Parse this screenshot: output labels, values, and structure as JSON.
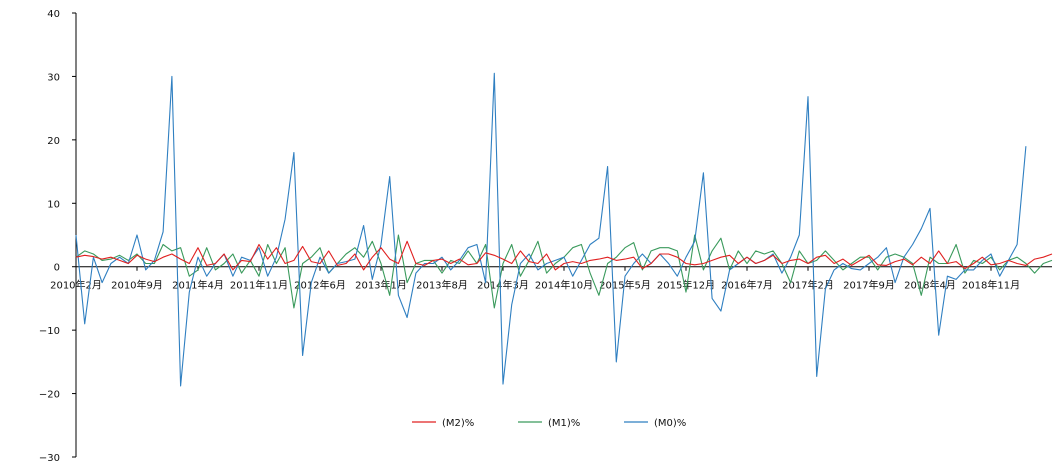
{
  "chart_data": {
    "type": "line",
    "title": "",
    "xlabel": "",
    "ylabel": "",
    "ylim": [
      -30,
      40
    ],
    "y_ticks": [
      -30,
      -20,
      -10,
      0,
      10,
      20,
      30,
      40
    ],
    "x_tick_labels": [
      {
        "index": 0,
        "label": "2010年2月"
      },
      {
        "index": 7,
        "label": "2010年9月"
      },
      {
        "index": 14,
        "label": "2011年4月"
      },
      {
        "index": 21,
        "label": "2011年11月"
      },
      {
        "index": 28,
        "label": "2012年6月"
      },
      {
        "index": 35,
        "label": "2013年1月"
      },
      {
        "index": 42,
        "label": "2013年8月"
      },
      {
        "index": 49,
        "label": "2014年3月"
      },
      {
        "index": 56,
        "label": "2014年10月"
      },
      {
        "index": 63,
        "label": "2015年5月"
      },
      {
        "index": 70,
        "label": "2015年12月"
      },
      {
        "index": 77,
        "label": "2016年7月"
      },
      {
        "index": 84,
        "label": "2017年2月"
      },
      {
        "index": 91,
        "label": "2017年9月"
      },
      {
        "index": 98,
        "label": "2018年4月"
      },
      {
        "index": 105,
        "label": "2018年11月"
      }
    ],
    "legend_position": "bottom-center",
    "grid": false,
    "series": [
      {
        "name": "(M2)%",
        "color": "#e02020",
        "values": [
          1.5,
          1.8,
          1.6,
          1.2,
          1.5,
          1.0,
          0.5,
          1.8,
          1.2,
          0.8,
          1.5,
          2.0,
          1.2,
          0.5,
          3.0,
          0.2,
          0.5,
          2.0,
          -0.5,
          1.0,
          0.8,
          3.5,
          1.2,
          3.0,
          0.5,
          1.0,
          3.2,
          0.8,
          0.5,
          2.5,
          0.2,
          0.5,
          2.0,
          -0.5,
          1.5,
          3.0,
          1.2,
          0.5,
          4.0,
          0.5,
          0.2,
          1.0,
          1.2,
          0.5,
          1.2,
          0.3,
          0.5,
          2.2,
          1.8,
          1.2,
          0.5,
          2.5,
          0.8,
          0.5,
          2.0,
          -0.5,
          0.5,
          0.8,
          0.5,
          1.0,
          1.2,
          1.5,
          1.0,
          1.2,
          1.5,
          -0.3,
          0.5,
          2.0,
          2.0,
          1.5,
          0.5,
          0.3,
          0.5,
          1.0,
          1.5,
          1.8,
          0.5,
          1.5,
          0.5,
          1.0,
          1.8,
          0.5,
          1.0,
          1.2,
          0.5,
          1.5,
          1.8,
          0.5,
          1.2,
          0.2,
          1.0,
          1.8,
          0.3,
          0.2,
          0.8,
          1.2,
          0.3,
          1.5,
          0.5,
          2.5,
          0.5,
          0.8,
          -0.3,
          0.5,
          1.5,
          0.3,
          0.5,
          1.0,
          0.5,
          0.2,
          1.2,
          1.5,
          2.0
        ]
      },
      {
        "name": "(M1)%",
        "color": "#3a9a5c",
        "values": [
          1.5,
          2.5,
          2.0,
          1.0,
          1.2,
          1.8,
          1.0,
          2.0,
          0.5,
          0.5,
          3.5,
          2.5,
          3.0,
          -1.5,
          -0.5,
          3.0,
          -0.5,
          0.5,
          2.0,
          -1.0,
          1.0,
          -1.5,
          3.5,
          0.5,
          3.0,
          -6.5,
          0.5,
          1.5,
          3.0,
          -1.0,
          0.5,
          2.0,
          3.0,
          1.5,
          4.0,
          0.5,
          -4.5,
          5.0,
          -2.5,
          0.5,
          1.0,
          1.0,
          -1.0,
          1.0,
          0.5,
          2.5,
          0.5,
          3.5,
          -6.5,
          0.5,
          3.5,
          -1.5,
          1.0,
          4.0,
          -1.0,
          0.5,
          1.5,
          3.0,
          3.5,
          -1.0,
          -4.5,
          0.5,
          1.5,
          3.0,
          3.8,
          -0.5,
          2.5,
          3.0,
          3.0,
          2.5,
          -4.0,
          5.0,
          -0.5,
          2.5,
          4.5,
          -0.5,
          2.5,
          0.5,
          2.5,
          2.0,
          2.5,
          0.5,
          -2.5,
          2.5,
          0.5,
          1.0,
          2.5,
          1.0,
          -0.5,
          0.5,
          1.5,
          1.5,
          -0.5,
          1.5,
          2.0,
          1.5,
          0.5,
          -4.5,
          1.5,
          0.5,
          0.5,
          3.5,
          -1.0,
          1.0,
          0.5,
          1.5,
          -0.5,
          1.0,
          1.5,
          0.5,
          -1.0,
          0.5,
          1.0
        ]
      },
      {
        "name": "(M0)%",
        "color": "#2f7fc1",
        "values": [
          5.0,
          -9.0,
          1.5,
          -2.5,
          0.5,
          1.5,
          0.5,
          5.0,
          -0.5,
          1.0,
          5.5,
          30.0,
          -18.8,
          -4.0,
          1.5,
          -1.5,
          0.5,
          2.0,
          -1.5,
          1.5,
          1.0,
          3.0,
          -1.5,
          1.5,
          7.5,
          18.0,
          -14.0,
          -2.5,
          1.5,
          -1.0,
          0.5,
          0.8,
          1.2,
          6.5,
          -2.0,
          3.5,
          14.2,
          -4.5,
          -8.0,
          -1.0,
          0.5,
          0.5,
          1.5,
          -0.5,
          1.0,
          3.0,
          3.5,
          -2.5,
          30.5,
          -18.5,
          -6.0,
          0.5,
          2.0,
          -0.5,
          0.5,
          1.0,
          1.5,
          -1.5,
          1.0,
          3.5,
          4.5,
          15.8,
          -15.0,
          -1.5,
          0.5,
          2.0,
          0.5,
          2.0,
          0.5,
          -1.5,
          1.5,
          4.0,
          14.8,
          -5.0,
          -7.0,
          -0.5,
          0.5,
          1.5,
          0.5,
          1.0,
          2.0,
          -1.0,
          1.5,
          5.0,
          26.8,
          -17.3,
          -3.5,
          -0.5,
          0.5,
          -0.3,
          -0.5,
          0.5,
          1.5,
          3.0,
          -2.5,
          1.5,
          3.5,
          6.0,
          9.2,
          -10.8,
          -1.5,
          -2.0,
          -0.5,
          -0.5,
          1.0,
          2.0,
          -1.5,
          1.0,
          3.5,
          19.0
        ]
      }
    ]
  }
}
